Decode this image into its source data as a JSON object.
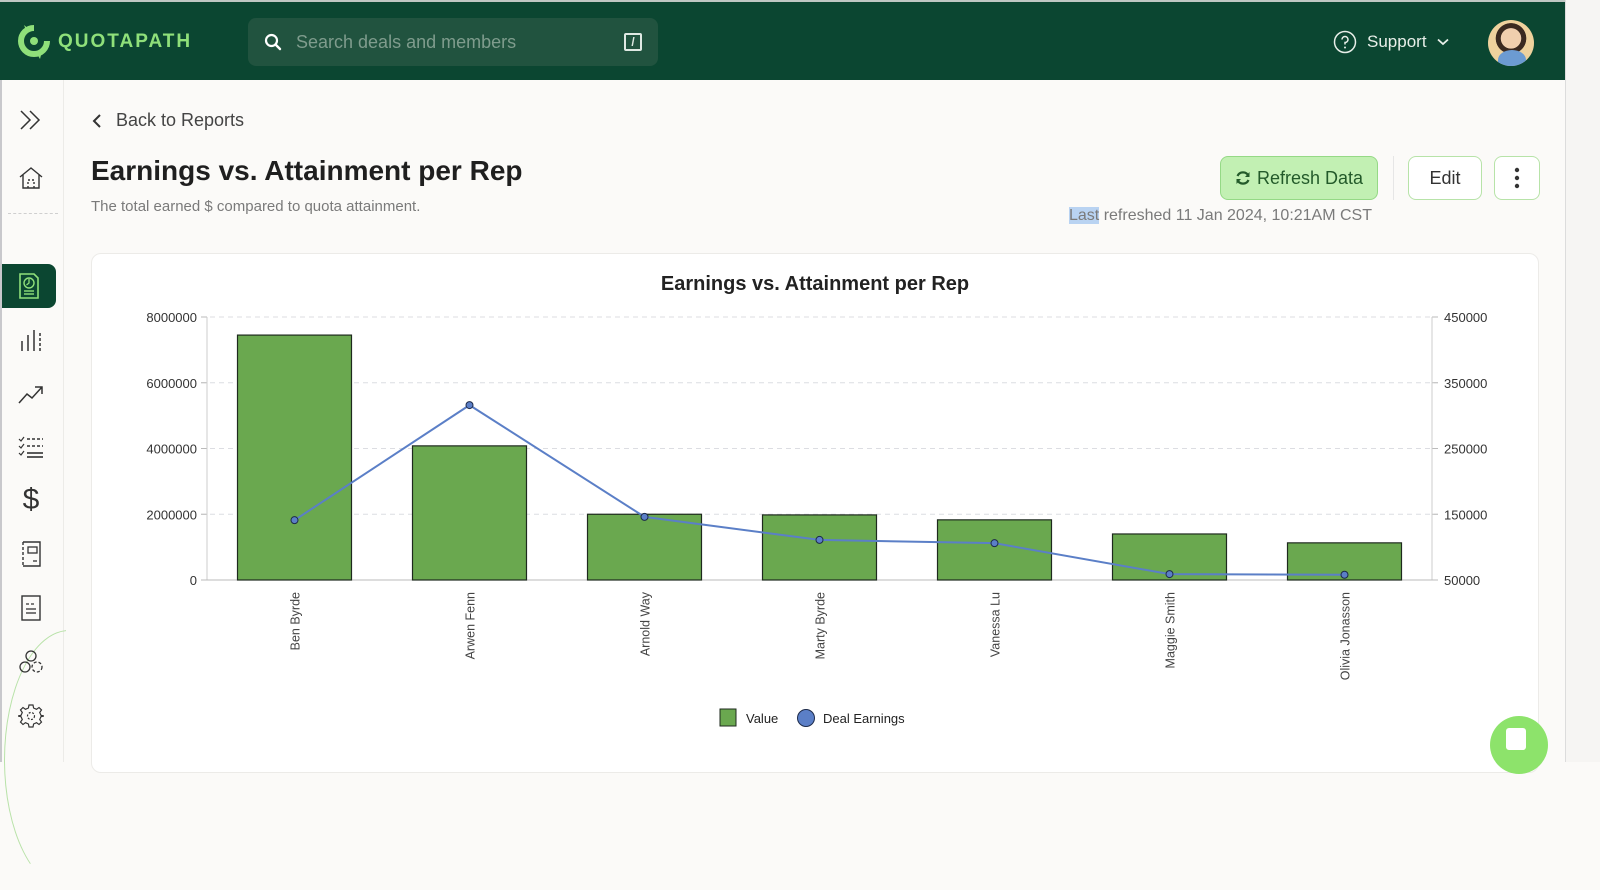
{
  "topbar": {
    "logo_text": "QUOTAPATH",
    "search_placeholder": "Search deals and members",
    "search_shortcut": "/",
    "support_label": "Support",
    "brand_color": "#0b4631",
    "accent_color": "#8fe07a"
  },
  "sidebar": {
    "items": [
      {
        "name": "expand",
        "icon": "double-chevron-right-icon"
      },
      {
        "name": "home",
        "icon": "home-icon"
      },
      {
        "name": "reports",
        "icon": "report-document-icon",
        "active": true
      },
      {
        "name": "analytics",
        "icon": "bar-chart-icon"
      },
      {
        "name": "trends",
        "icon": "trend-up-icon"
      },
      {
        "name": "tasks",
        "icon": "checklist-icon"
      },
      {
        "name": "payouts",
        "icon": "dollar-icon"
      },
      {
        "name": "plans",
        "icon": "notebook-icon"
      },
      {
        "name": "documents",
        "icon": "document-lines-icon"
      },
      {
        "name": "teams",
        "icon": "team-circles-icon"
      },
      {
        "name": "settings",
        "icon": "gear-icon"
      }
    ]
  },
  "header": {
    "back_label": "Back to Reports",
    "title": "Earnings vs. Attainment per Rep",
    "subtitle": "The total earned $ compared to quota attainment.",
    "refresh_label": "Refresh Data",
    "edit_label": "Edit",
    "last_refreshed_highlight": "Last",
    "last_refreshed_rest": " refreshed 11 Jan 2024, 10:21AM CST"
  },
  "chart_data": {
    "type": "bar",
    "title": "Earnings vs. Attainment per Rep",
    "xlabel": "",
    "ylabel": "",
    "categories": [
      "Ben Byrde",
      "Arwen Fenn",
      "Arnold Way",
      "Marty Byrde",
      "Vanessa Lu",
      "Maggie Smith",
      "Olivia Jonasson"
    ],
    "series": [
      {
        "name": "Value",
        "type": "bar",
        "axis": "left",
        "color": "#6aa84f",
        "values": [
          7450000,
          4080000,
          2000000,
          1980000,
          1830000,
          1400000,
          1130000
        ]
      },
      {
        "name": "Deal Earnings",
        "type": "line",
        "axis": "right",
        "color": "#5b7fc7",
        "values": [
          141000,
          316000,
          146000,
          111000,
          106000,
          59000,
          58000
        ]
      }
    ],
    "left_axis": {
      "ylim": [
        0,
        8000000
      ],
      "ticks": [
        "0",
        "2000000",
        "4000000",
        "6000000",
        "8000000"
      ]
    },
    "right_axis": {
      "ylim": [
        50000,
        450000
      ],
      "ticks": [
        "50000",
        "150000",
        "250000",
        "350000",
        "450000"
      ]
    },
    "grid": true,
    "legend_position": "bottom",
    "legend": [
      "Value",
      "Deal Earnings"
    ]
  }
}
